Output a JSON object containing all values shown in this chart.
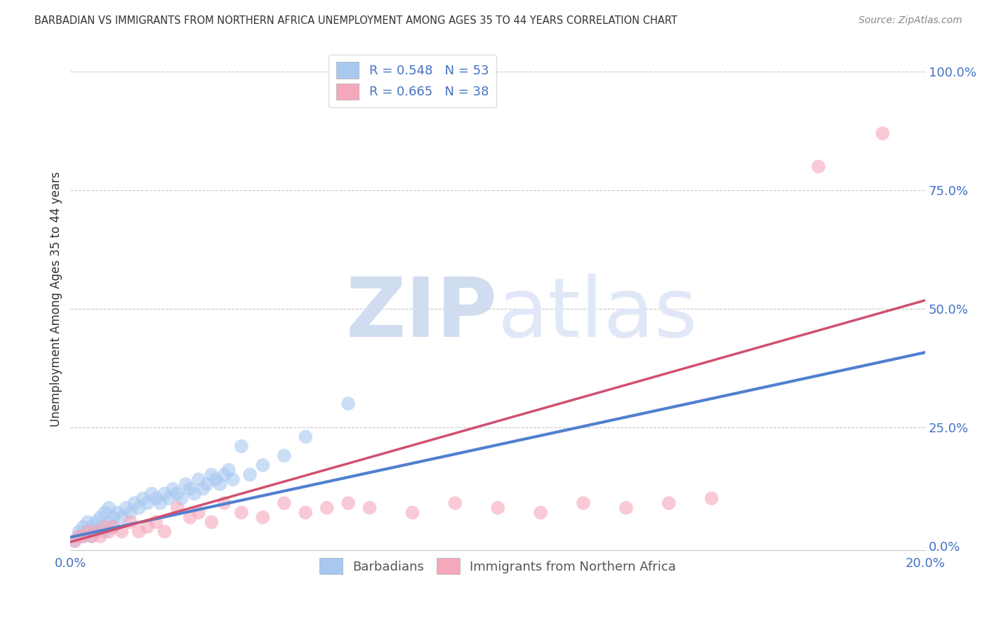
{
  "title": "BARBADIAN VS IMMIGRANTS FROM NORTHERN AFRICA UNEMPLOYMENT AMONG AGES 35 TO 44 YEARS CORRELATION CHART",
  "source": "Source: ZipAtlas.com",
  "ylabel": "Unemployment Among Ages 35 to 44 years",
  "xlim": [
    0.0,
    0.2
  ],
  "ylim": [
    -0.01,
    1.05
  ],
  "xticks": [
    0.0,
    0.05,
    0.1,
    0.15,
    0.2
  ],
  "xtick_labels": [
    "0.0%",
    "",
    "",
    "",
    "20.0%"
  ],
  "ytick_labels_right": [
    "0.0%",
    "25.0%",
    "50.0%",
    "75.0%",
    "100.0%"
  ],
  "yticks_right": [
    0.0,
    0.25,
    0.5,
    0.75,
    1.0
  ],
  "blue_R": "0.548",
  "blue_N": "53",
  "pink_R": "0.665",
  "pink_N": "38",
  "blue_color": "#A8C8F0",
  "pink_color": "#F5A8BC",
  "blue_line_color": "#5080D0",
  "pink_line_color": "#D05070",
  "watermark_zip": "ZIP",
  "watermark_atlas": "atlas",
  "watermark_color": "#D0DCF0",
  "legend_blue_label": "Barbadians",
  "legend_pink_label": "Immigrants from Northern Africa",
  "blue_line_intercept": 0.018,
  "blue_line_slope": 1.95,
  "pink_line_intercept": 0.008,
  "pink_line_slope": 2.55,
  "blue_scatter_x": [
    0.001,
    0.002,
    0.002,
    0.003,
    0.003,
    0.004,
    0.004,
    0.005,
    0.005,
    0.006,
    0.006,
    0.007,
    0.007,
    0.008,
    0.008,
    0.009,
    0.009,
    0.01,
    0.01,
    0.011,
    0.012,
    0.013,
    0.014,
    0.015,
    0.016,
    0.017,
    0.018,
    0.019,
    0.02,
    0.021,
    0.022,
    0.023,
    0.024,
    0.025,
    0.026,
    0.027,
    0.028,
    0.029,
    0.03,
    0.031,
    0.032,
    0.033,
    0.034,
    0.035,
    0.036,
    0.037,
    0.038,
    0.04,
    0.042,
    0.045,
    0.05,
    0.055,
    0.065
  ],
  "blue_scatter_y": [
    0.01,
    0.02,
    0.03,
    0.02,
    0.04,
    0.03,
    0.05,
    0.02,
    0.04,
    0.03,
    0.05,
    0.04,
    0.06,
    0.03,
    0.07,
    0.05,
    0.08,
    0.04,
    0.06,
    0.07,
    0.06,
    0.08,
    0.07,
    0.09,
    0.08,
    0.1,
    0.09,
    0.11,
    0.1,
    0.09,
    0.11,
    0.1,
    0.12,
    0.11,
    0.1,
    0.13,
    0.12,
    0.11,
    0.14,
    0.12,
    0.13,
    0.15,
    0.14,
    0.13,
    0.15,
    0.16,
    0.14,
    0.21,
    0.15,
    0.17,
    0.19,
    0.23,
    0.3
  ],
  "pink_scatter_x": [
    0.001,
    0.002,
    0.003,
    0.004,
    0.005,
    0.006,
    0.007,
    0.008,
    0.009,
    0.01,
    0.012,
    0.014,
    0.016,
    0.018,
    0.02,
    0.022,
    0.025,
    0.028,
    0.03,
    0.033,
    0.036,
    0.04,
    0.045,
    0.05,
    0.055,
    0.06,
    0.065,
    0.07,
    0.08,
    0.09,
    0.1,
    0.11,
    0.12,
    0.13,
    0.14,
    0.15,
    0.175,
    0.19
  ],
  "pink_scatter_y": [
    0.01,
    0.02,
    0.02,
    0.03,
    0.02,
    0.03,
    0.02,
    0.04,
    0.03,
    0.04,
    0.03,
    0.05,
    0.03,
    0.04,
    0.05,
    0.03,
    0.08,
    0.06,
    0.07,
    0.05,
    0.09,
    0.07,
    0.06,
    0.09,
    0.07,
    0.08,
    0.09,
    0.08,
    0.07,
    0.09,
    0.08,
    0.07,
    0.09,
    0.08,
    0.09,
    0.1,
    0.8,
    0.87
  ]
}
